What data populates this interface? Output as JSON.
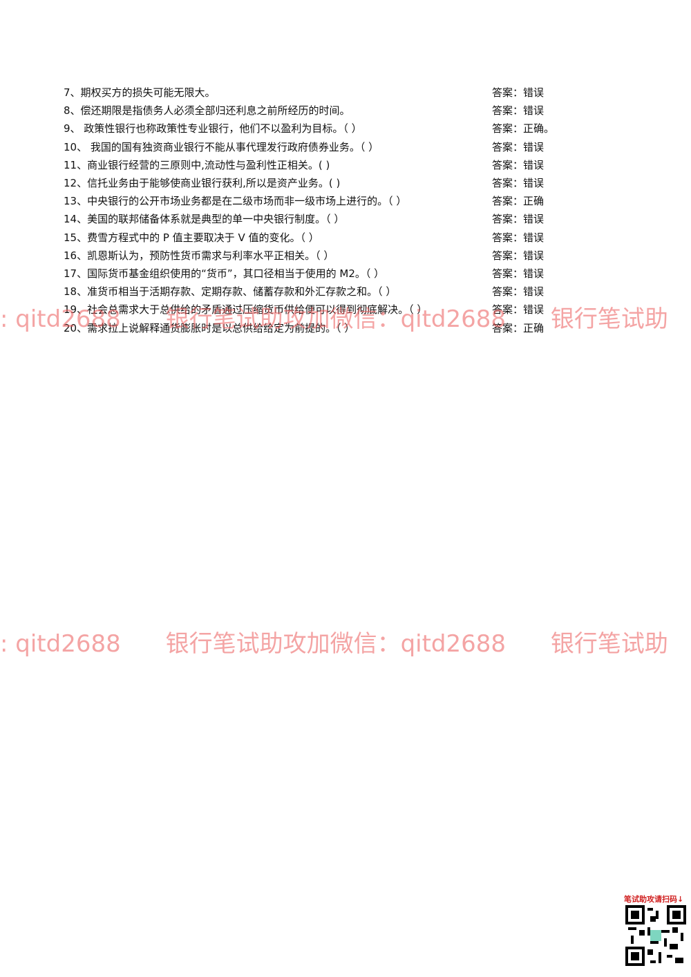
{
  "questions": [
    {
      "text": "7、期权买方的损失可能无限大。",
      "answer": "答案：错误"
    },
    {
      "text": "8、偿还期限是指债务人必须全部归还利息之前所经历的时间。",
      "answer": "答案：错误"
    },
    {
      "text": "9、 政策性银行也称政策性专业银行，他们不以盈利为目标。（ ）",
      "answer": "答案：正确。"
    },
    {
      "text": "10、 我国的国有独资商业银行不能从事代理发行政府债券业务。（ ）",
      "answer": "答案：错误"
    },
    {
      "text": "11、商业银行经营的三原则中,流动性与盈利性正相关。( )",
      "answer": "答案：错误"
    },
    {
      "text": "12、信托业务由于能够使商业银行获利,所以是资产业务。( )",
      "answer": "答案：错误"
    },
    {
      "text": "13、中央银行的公开市场业务都是在二级市场而非一级市场上进行的。（ ）",
      "answer": "答案：正确"
    },
    {
      "text": "14、美国的联邦储备体系就是典型的单一中央银行制度。（ ）",
      "answer": "答案：错误"
    },
    {
      "text": "15、费雪方程式中的 P 值主要取决于 V 值的变化。（ ）",
      "answer": "答案：错误"
    },
    {
      "text": "16、凯恩斯认为，预防性货币需求与利率水平正相关。（ ）",
      "answer": "答案：错误"
    },
    {
      "text": "17、国际货币基金组织使用的“货币”，其口径相当于使用的 M2。（ ）",
      "answer": "答案：错误"
    },
    {
      "text": "18、准货币相当于活期存款、定期存款、储蓄存款和外汇存款之和。（ ）",
      "answer": "答案：错误"
    },
    {
      "text": "19、社会总需求大于总供给的矛盾通过压缩货币供给便可以得到彻底解决。（ ）",
      "answer": "答案：错误"
    },
    {
      "text": "20、需求拉上说解释通货膨胀时是以总供给给定为前提的。（ ）",
      "answer": "答案：正确"
    }
  ],
  "watermarks": [
    ": qitd2688      银行笔试助攻加微信：qitd2688      银行笔试助",
    ": qitd2688      银行笔试助攻加微信：qitd2688      银行笔试助"
  ],
  "qr_label": "笔试助攻请扫码↓"
}
